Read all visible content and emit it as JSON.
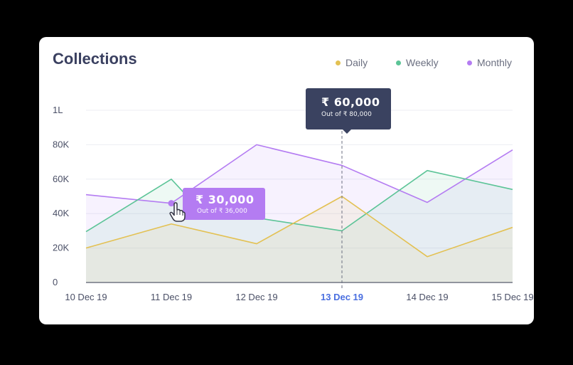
{
  "colors": {
    "daily": "#e3c153",
    "weekly": "#5cc497",
    "monthly": "#b47cf2",
    "tooltip_dark": "#3a4260",
    "active_tick": "#4a6fe0"
  },
  "chart_data": {
    "type": "line",
    "title": "Collections",
    "x": [
      "10 Dec 19",
      "11 Dec 19",
      "12 Dec 19",
      "13 Dec 19",
      "14 Dec 19",
      "15 Dec 19"
    ],
    "y_ticks": [
      "0",
      "20K",
      "40K",
      "60K",
      "80K",
      "1L"
    ],
    "ylim": [
      0,
      100000
    ],
    "legend_position": "top-right",
    "active_x": "13 Dec 19",
    "series": [
      {
        "name": "Daily",
        "color_key": "daily",
        "points": [
          [
            0,
            20000
          ],
          [
            1,
            34000
          ],
          [
            2,
            22500
          ],
          [
            3,
            50000
          ],
          [
            4,
            15000
          ],
          [
            5,
            32000
          ]
        ]
      },
      {
        "name": "Weekly",
        "color_key": "weekly",
        "points": [
          [
            0,
            29500
          ],
          [
            1,
            60000
          ],
          [
            1.3,
            44000
          ],
          [
            2,
            37500
          ],
          [
            3,
            30000
          ],
          [
            4,
            65000
          ],
          [
            5,
            54000
          ]
        ]
      },
      {
        "name": "Monthly",
        "color_key": "monthly",
        "points": [
          [
            0,
            51000
          ],
          [
            1,
            46000
          ],
          [
            2,
            80000
          ],
          [
            3,
            68000
          ],
          [
            4,
            46500
          ],
          [
            5,
            77000
          ]
        ]
      }
    ]
  },
  "tooltips": {
    "main": {
      "amount": "₹ 60,000",
      "sub": "Out of  ₹ 80,000"
    },
    "hover": {
      "amount": "₹ 30,000",
      "sub": "Out of  ₹ 36,000"
    }
  }
}
